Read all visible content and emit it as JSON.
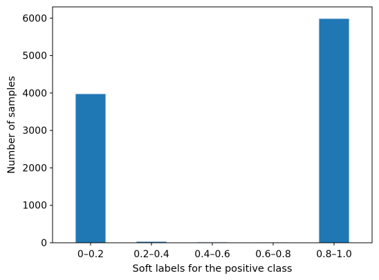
{
  "chart_data": {
    "type": "bar",
    "title": "",
    "xlabel": "Soft labels for the positive class",
    "ylabel": "Number of samples",
    "categories": [
      "0–0.2",
      "0.2–0.4",
      "0.4–0.6",
      "0.6–0.8",
      "0.8–1.0"
    ],
    "values": [
      3980,
      35,
      20,
      5,
      5990
    ],
    "ylim": [
      0,
      6300
    ],
    "yticks": [
      0,
      1000,
      2000,
      3000,
      4000,
      5000,
      6000
    ],
    "grid": false,
    "legend": "none",
    "bar_color": "#1f77b4",
    "bar_edge_color": "#e8eef5"
  }
}
